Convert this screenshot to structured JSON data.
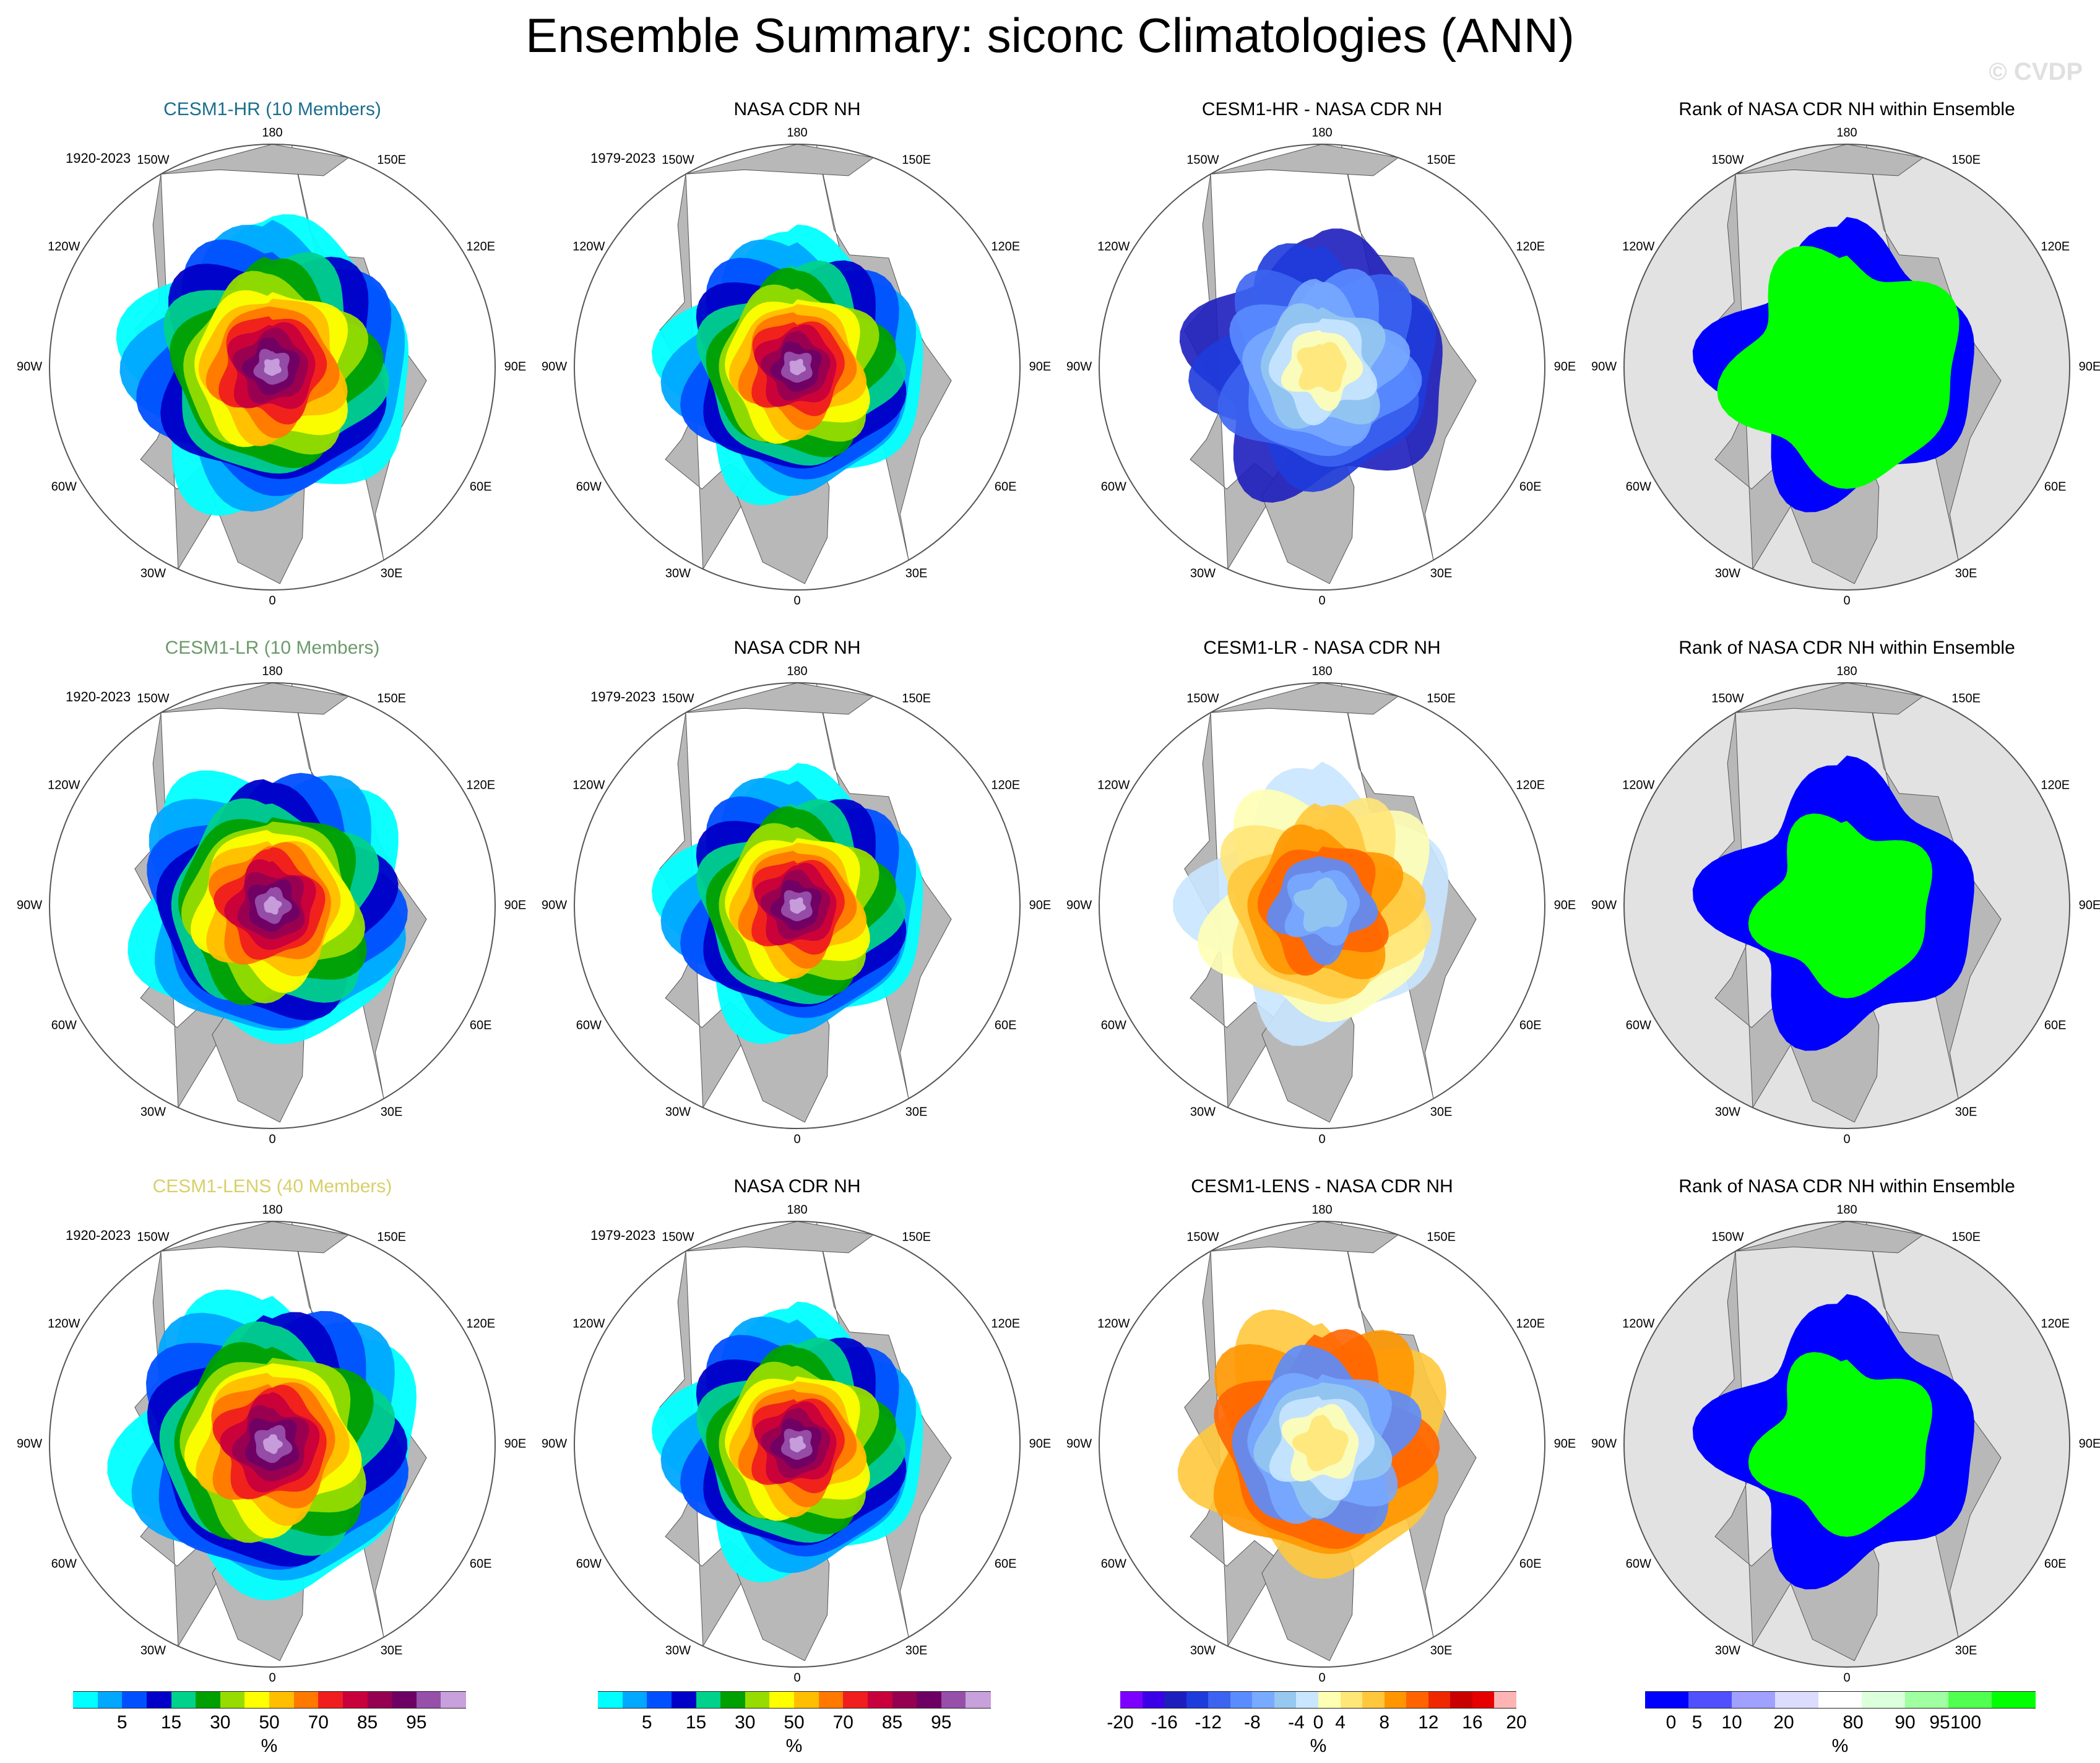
{
  "figure": {
    "title": "Ensemble Summary: siconc Climatologies (ANN)",
    "watermark": "© CVDP"
  },
  "map_labels": {
    "top": "180",
    "bottom": "0",
    "left": "90W",
    "right": "90E",
    "upper_left_1": "150W",
    "upper_left_2": "120W",
    "upper_right_1": "150E",
    "upper_right_2": "120E",
    "lower_left_1": "60W",
    "lower_left_2": "30W",
    "lower_right_1": "60E",
    "lower_right_2": "30E"
  },
  "rows": [
    {
      "ensemble": {
        "title": "CESM1-HR (10 Members)",
        "title_color": "#1b6f8e",
        "period": "1920-2023",
        "kind": "clim",
        "extent": 0.62,
        "spread": "high"
      },
      "obs": {
        "title": "NASA CDR NH",
        "period": "1979-2023",
        "kind": "clim",
        "extent": 0.56,
        "spread": "obs"
      },
      "diff": {
        "title": "CESM1-HR - NASA CDR NH",
        "kind": "diff",
        "variant": "hr"
      },
      "rank": {
        "title": "Rank of NASA CDR NH within Ensemble",
        "kind": "rank",
        "variant": "hr"
      }
    },
    {
      "ensemble": {
        "title": "CESM1-LR (10 Members)",
        "title_color": "#6b9a6b",
        "period": "1920-2023",
        "kind": "clim",
        "extent": 0.6,
        "spread": "low"
      },
      "obs": {
        "title": "NASA CDR NH",
        "period": "1979-2023",
        "kind": "clim",
        "extent": 0.56,
        "spread": "obs"
      },
      "diff": {
        "title": "CESM1-LR - NASA CDR NH",
        "kind": "diff",
        "variant": "lr"
      },
      "rank": {
        "title": "Rank of NASA CDR NH within Ensemble",
        "kind": "rank",
        "variant": "lr"
      }
    },
    {
      "ensemble": {
        "title": "CESM1-LENS (40 Members)",
        "title_color": "#d9cf6a",
        "period": "1920-2023",
        "kind": "clim",
        "extent": 0.64,
        "spread": "lens"
      },
      "obs": {
        "title": "NASA CDR NH",
        "period": "1979-2023",
        "kind": "clim",
        "extent": 0.56,
        "spread": "obs"
      },
      "diff": {
        "title": "CESM1-LENS - NASA CDR NH",
        "kind": "diff",
        "variant": "lens"
      },
      "rank": {
        "title": "Rank of NASA CDR NH within Ensemble",
        "kind": "rank",
        "variant": "lens"
      }
    }
  ],
  "colorbars": {
    "clim": {
      "colors": [
        "#00ffff",
        "#00a8ff",
        "#0050ff",
        "#0000c8",
        "#00d28c",
        "#00a000",
        "#96dc00",
        "#ffff00",
        "#ffbe00",
        "#ff7800",
        "#f01e1e",
        "#c8003c",
        "#960050",
        "#6e0064",
        "#9650aa",
        "#c8a0dc"
      ],
      "ticks": [
        "5",
        "15",
        "30",
        "50",
        "70",
        "85",
        "95"
      ],
      "tick_positions": [
        1,
        3,
        5,
        7,
        9,
        11,
        13
      ],
      "unit": "%"
    },
    "diff": {
      "colors": [
        "#7d00ff",
        "#3c00e6",
        "#1e1ebe",
        "#1e3cdc",
        "#3c64f0",
        "#5a8cff",
        "#78aaff",
        "#96c8f0",
        "#c8e6ff",
        "#ffffb4",
        "#ffe678",
        "#ffc83c",
        "#ff9600",
        "#ff6400",
        "#f02800",
        "#c80000",
        "#e60000",
        "#ffb4b4"
      ],
      "ticks": [
        "-20",
        "-16",
        "-12",
        "-8",
        "-4",
        "0",
        "4",
        "8",
        "12",
        "16",
        "20"
      ],
      "tick_positions": [
        0,
        2,
        4,
        6,
        8,
        9,
        10,
        12,
        14,
        16,
        18
      ],
      "unit": "%"
    },
    "rank": {
      "colors": [
        "#0000ff",
        "#5050ff",
        "#a0a0ff",
        "#dcdcff",
        "#ffffff",
        "#dcffdc",
        "#a0ffa0",
        "#50ff50",
        "#00ff00"
      ],
      "ticks": [
        "0",
        "5",
        "10",
        "20",
        "80",
        "90",
        "95",
        "100"
      ],
      "tick_positions": [
        0.6,
        1.2,
        2,
        3.2,
        4.8,
        6,
        6.8,
        7.4
      ],
      "unit": "%"
    }
  }
}
